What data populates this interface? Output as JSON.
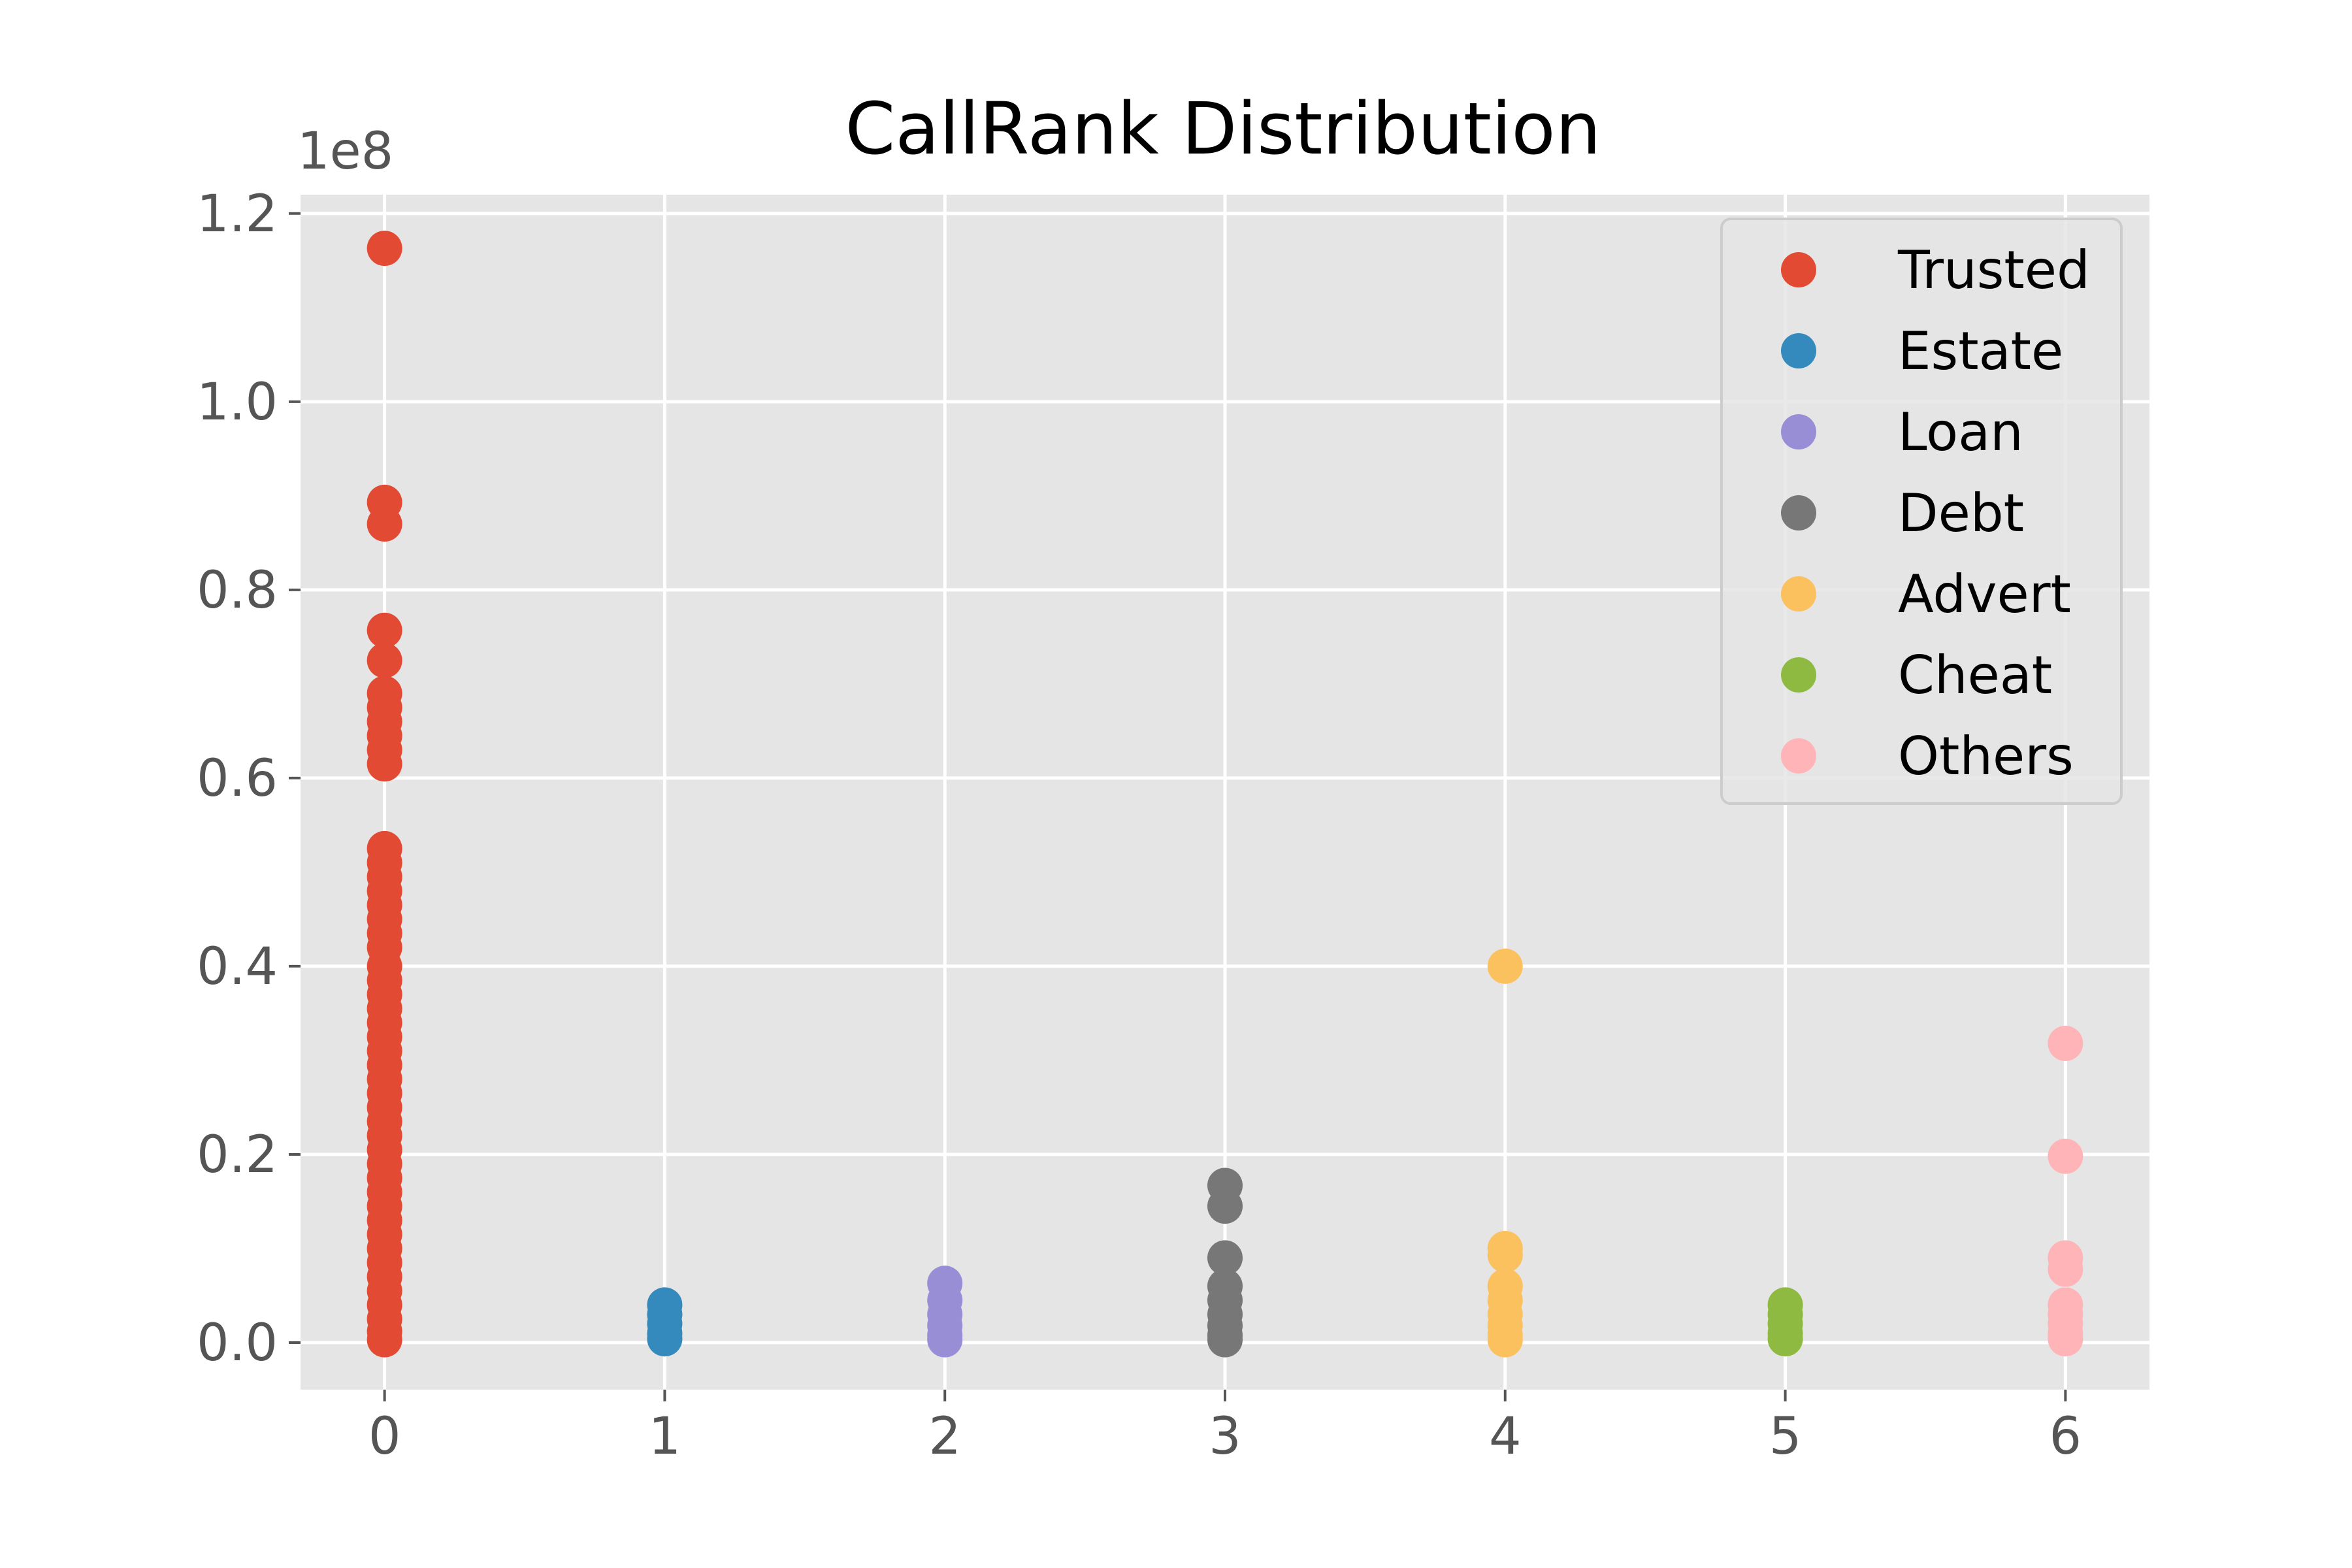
{
  "chart_data": {
    "type": "scatter",
    "title": "CallRank Distribution",
    "xlabel": "",
    "ylabel": "",
    "y_offset_label": "1e8",
    "xlim": [
      -0.3,
      6.3
    ],
    "ylim": [
      -0.05,
      1.22
    ],
    "x_ticks": [
      0,
      1,
      2,
      3,
      4,
      5,
      6
    ],
    "x_tick_labels": [
      "0",
      "1",
      "2",
      "3",
      "4",
      "5",
      "6"
    ],
    "y_ticks": [
      0.0,
      0.2,
      0.4,
      0.6,
      0.8,
      1.0,
      1.2
    ],
    "y_tick_labels": [
      "0.0",
      "0.2",
      "0.4",
      "0.6",
      "0.8",
      "1.0",
      "1.2"
    ],
    "grid": true,
    "legend_position": "top-right",
    "series": [
      {
        "name": "Trusted",
        "color": "#E24A33",
        "x": 0,
        "y": [
          1.163,
          0.893,
          0.87,
          0.757,
          0.725,
          0.69,
          0.675,
          0.66,
          0.645,
          0.63,
          0.615,
          0.525,
          0.51,
          0.495,
          0.48,
          0.465,
          0.45,
          0.435,
          0.42,
          0.4,
          0.385,
          0.37,
          0.355,
          0.34,
          0.325,
          0.31,
          0.295,
          0.28,
          0.265,
          0.25,
          0.235,
          0.22,
          0.205,
          0.19,
          0.175,
          0.16,
          0.145,
          0.13,
          0.115,
          0.1,
          0.085,
          0.07,
          0.055,
          0.04,
          0.025,
          0.012,
          0.003
        ]
      },
      {
        "name": "Estate",
        "color": "#348ABD",
        "x": 1,
        "y": [
          0.04,
          0.03,
          0.02,
          0.01,
          0.004
        ]
      },
      {
        "name": "Loan",
        "color": "#988ED5",
        "x": 2,
        "y": [
          0.063,
          0.045,
          0.03,
          0.018,
          0.008,
          0.003
        ]
      },
      {
        "name": "Debt",
        "color": "#777777",
        "x": 3,
        "y": [
          0.167,
          0.145,
          0.09,
          0.06,
          0.045,
          0.03,
          0.018,
          0.008,
          0.003
        ]
      },
      {
        "name": "Advert",
        "color": "#FBC15E",
        "x": 4,
        "y": [
          0.4,
          0.1,
          0.093,
          0.06,
          0.045,
          0.03,
          0.018,
          0.008,
          0.003
        ]
      },
      {
        "name": "Cheat",
        "color": "#8EBA42",
        "x": 5,
        "y": [
          0.04,
          0.03,
          0.02,
          0.01,
          0.004
        ]
      },
      {
        "name": "Others",
        "color": "#FFB5B8",
        "x": 6,
        "y": [
          0.318,
          0.198,
          0.09,
          0.078,
          0.04,
          0.03,
          0.02,
          0.01,
          0.004
        ]
      }
    ]
  }
}
